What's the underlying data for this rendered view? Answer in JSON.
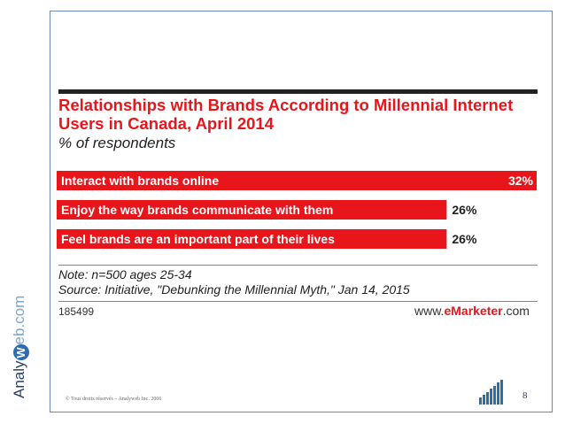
{
  "title": "Relationships with Brands According to Millennial Internet Users in Canada, April 2014",
  "subtitle": "% of respondents",
  "chart_data": {
    "type": "bar",
    "orientation": "horizontal",
    "title": "Relationships with Brands According to Millennial Internet Users in Canada, April 2014",
    "subtitle": "% of respondents",
    "categories": [
      "Interact with brands online",
      "Enjoy the way brands communicate with them",
      "Feel brands are an important part of their lives"
    ],
    "values": [
      32,
      26,
      26
    ],
    "value_labels": [
      "32%",
      "26%",
      "26%"
    ],
    "unit": "%",
    "xlim": [
      0,
      32
    ],
    "bar_color": "#e8161b"
  },
  "note": "Note: n=500 ages 25-34",
  "source": "Source: Initiative, \"Debunking the Millennial Myth,\" Jan 14, 2015",
  "chart_id": "185499",
  "brand": {
    "prefix": "www.",
    "name": "eMarketer",
    "suffix": ".com"
  },
  "side_logo": {
    "left": "Analy",
    "mid": "W",
    "right": "eb.com"
  },
  "footer": {
    "copyright": "© Tous droits réservés – Analyweb Inc. 2006",
    "page_number": "8"
  }
}
